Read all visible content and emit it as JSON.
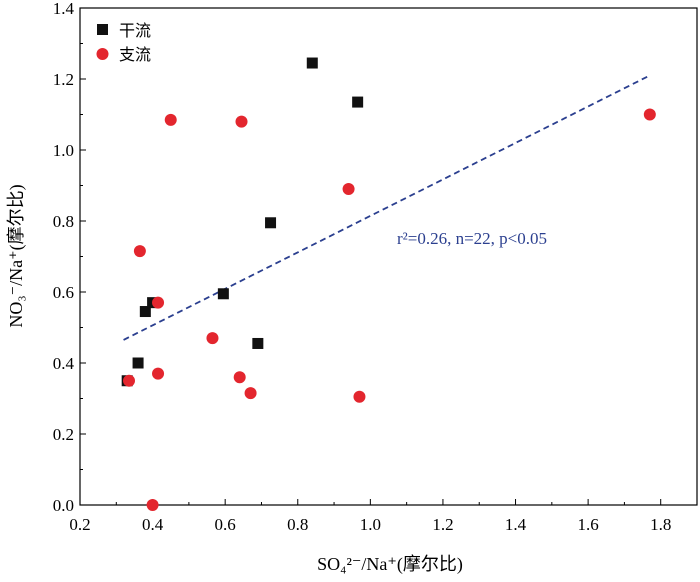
{
  "chart_data": {
    "type": "scatter",
    "xlabel": "SO₄²⁻/Na⁺(摩尔比)",
    "ylabel": "NO₃⁻/Na⁺(摩尔比)",
    "xlim": [
      0.2,
      1.9
    ],
    "ylim": [
      0.0,
      1.4
    ],
    "x_ticks": [
      "0.2",
      "0.4",
      "0.6",
      "0.8",
      "1.0",
      "1.2",
      "1.4",
      "1.6",
      "1.8"
    ],
    "y_ticks": [
      "0.0",
      "0.2",
      "0.4",
      "0.6",
      "0.8",
      "1.0",
      "1.2",
      "1.4"
    ],
    "x_tick_values": [
      0.2,
      0.4,
      0.6,
      0.8,
      1.0,
      1.2,
      1.4,
      1.6,
      1.8
    ],
    "y_tick_values": [
      0.0,
      0.2,
      0.4,
      0.6,
      0.8,
      1.0,
      1.2,
      1.4
    ],
    "grid": false,
    "legend_position": "top-left",
    "series": [
      {
        "name": "干流",
        "marker": "square",
        "color": "#111111",
        "points": [
          [
            0.33,
            0.35
          ],
          [
            0.36,
            0.4
          ],
          [
            0.38,
            0.545
          ],
          [
            0.4,
            0.57
          ],
          [
            0.595,
            0.595
          ],
          [
            0.69,
            0.455
          ],
          [
            0.725,
            0.795
          ],
          [
            0.84,
            1.245
          ],
          [
            0.965,
            1.135
          ]
        ]
      },
      {
        "name": "支流",
        "marker": "circle",
        "color": "#e3262e",
        "points": [
          [
            0.335,
            0.35
          ],
          [
            0.365,
            0.715
          ],
          [
            0.4,
            0.0
          ],
          [
            0.415,
            0.57
          ],
          [
            0.415,
            0.37
          ],
          [
            0.45,
            1.085
          ],
          [
            0.565,
            0.47
          ],
          [
            0.64,
            0.36
          ],
          [
            0.645,
            1.08
          ],
          [
            0.67,
            0.315
          ],
          [
            0.94,
            0.89
          ],
          [
            0.97,
            0.305
          ],
          [
            1.77,
            1.1
          ]
        ]
      }
    ],
    "trendline": {
      "style": "dashed",
      "color": "#2b3f8f",
      "start": [
        0.32,
        0.465
      ],
      "end": [
        1.77,
        1.21
      ]
    },
    "annotation": "r²=0.26, n=22, p<0.05"
  }
}
